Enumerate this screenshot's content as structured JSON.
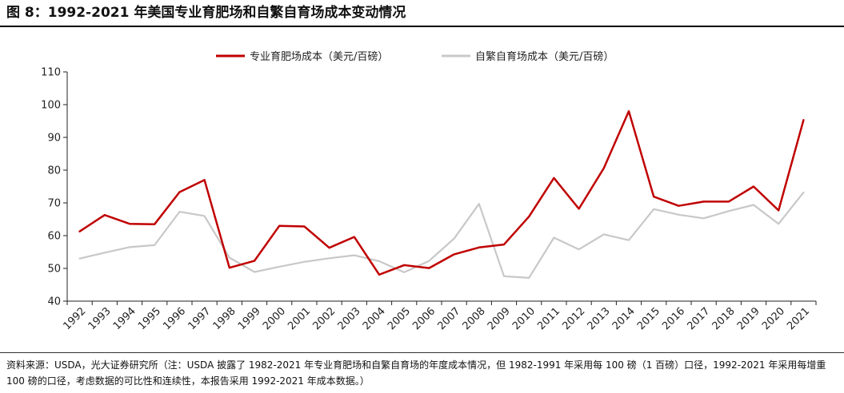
{
  "title": "图 8：1992-2021 年美国专业育肥场和自繁自育场成本变动情况",
  "source_note": "资料来源：USDA，光大证券研究所（注：USDA 披露了 1982-2021 年专业育肥场和自繁自育场的年度成本情况，但 1982-1991 年采用每 100 磅（1 百磅）口径，1992-2021 年采用每增重 100 磅的口径，考虑数据的可比性和连续性，本报告采用 1992-2021 年成本数据。）",
  "chart_data": {
    "type": "line",
    "title": "",
    "xlabel": "",
    "ylabel": "",
    "ylim": [
      40,
      110
    ],
    "yticks": [
      40,
      50,
      60,
      70,
      80,
      90,
      100,
      110
    ],
    "grid": false,
    "legend_position": "top-center",
    "categories": [
      "1992",
      "1993",
      "1994",
      "1995",
      "1996",
      "1997",
      "1998",
      "1999",
      "2000",
      "2001",
      "2002",
      "2003",
      "2004",
      "2005",
      "2006",
      "2007",
      "2008",
      "2009",
      "2010",
      "2011",
      "2012",
      "2013",
      "2014",
      "2015",
      "2016",
      "2017",
      "2018",
      "2019",
      "2020",
      "2021"
    ],
    "series": [
      {
        "name": "专业育肥场成本（美元/百磅）",
        "color": "#c00000",
        "values": [
          61.3,
          66.3,
          63.6,
          63.5,
          73.3,
          77.0,
          50.2,
          52.3,
          63.0,
          62.8,
          56.3,
          59.6,
          48.1,
          51.0,
          50.1,
          54.3,
          56.4,
          57.3,
          65.8,
          77.6,
          68.2,
          80.6,
          98.0,
          71.9,
          69.1,
          70.4,
          70.4,
          75.0,
          67.7,
          95.3
        ]
      },
      {
        "name": "自繁自育场成本（美元/百磅）",
        "color": "#c8c8c8",
        "values": [
          53.0,
          54.8,
          56.5,
          57.1,
          67.3,
          66.0,
          53.3,
          48.9,
          50.5,
          52.0,
          53.1,
          54.0,
          52.2,
          48.8,
          52.3,
          59.1,
          69.7,
          47.6,
          47.1,
          59.4,
          55.8,
          60.4,
          58.6,
          68.1,
          66.4,
          65.3,
          67.5,
          69.4,
          63.6,
          73.2
        ]
      }
    ]
  }
}
